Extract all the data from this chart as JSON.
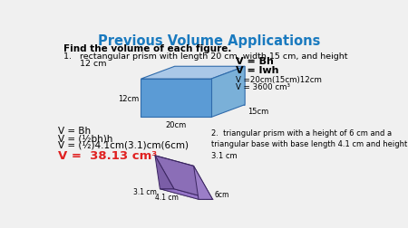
{
  "title": "Previous Volume Applications",
  "title_color": "#1a7abf",
  "title_fontsize": 10.5,
  "bg_color": "#f0f0f0",
  "subtitle": "Find the volume of each figure.",
  "item1_line1": "1.   rectangular prism with length 20 cm, width 15 cm, and height",
  "item1_line2": "      12 cm",
  "item1_formula1": "V = Bh",
  "item1_formula2": "V = lwh",
  "item1_formula3": "V =20cm(15cm)12cm",
  "item1_formula4": "V = 3600 cm³",
  "item2_label": "2.  triangular prism with a height of 6 cm and a\ntriangular base with base length 4.1 cm and height\n3.1 cm",
  "bottom_left_lines": [
    "V = Bh",
    "V = (½bh)h",
    "V = (½)4.1cm(3.1)cm(6cm)",
    "V =  38.13 cm³"
  ],
  "red_line_index": 3,
  "red_color": "#e02020",
  "rect_front_color": "#5b9bd5",
  "rect_right_color": "#7ab0d8",
  "rect_top_color": "#aac8e8",
  "rect_edge_color": "#2f6bab",
  "tri_front_color": "#7b5ea7",
  "tri_right_color": "#8b6eb7",
  "tri_top_color": "#9b7ec7",
  "tri_edge_color": "#3a2560",
  "rect_label_20": "20cm",
  "rect_label_15": "15cm",
  "rect_label_12": "12cm",
  "tri_label_31": "3.1 cm",
  "tri_label_41": "4.1 cm",
  "tri_label_6": "6cm"
}
